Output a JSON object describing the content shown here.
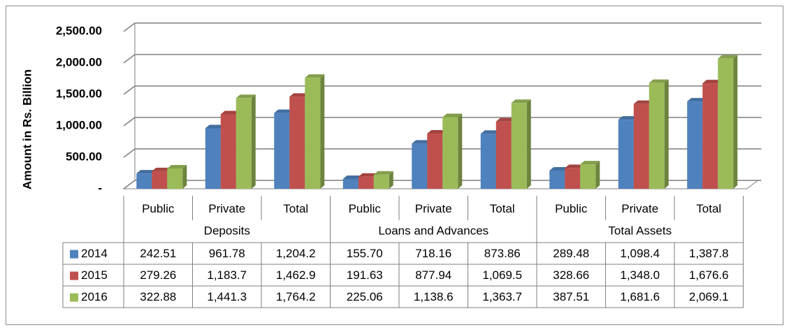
{
  "chart_data": {
    "type": "bar",
    "y_axis_label": "Amount in Rs. Billion",
    "categories": [
      "Public",
      "Private",
      "Total",
      "Public",
      "Private",
      "Total",
      "Public",
      "Private",
      "Total"
    ],
    "groups": [
      "Deposits",
      "Loans and Advances",
      "Total Assets"
    ],
    "series": [
      {
        "name": "2014",
        "color": "#4f81bd",
        "values": [
          242.51,
          961.78,
          1204.2,
          155.7,
          718.16,
          873.86,
          289.48,
          1098.4,
          1387.8
        ],
        "value_labels": [
          "242.51",
          "961.78",
          "1,204.2",
          "155.70",
          "718.16",
          "873.86",
          "289.48",
          "1,098.4",
          "1,387.8"
        ]
      },
      {
        "name": "2015",
        "color": "#c0504d",
        "values": [
          279.26,
          1183.7,
          1462.9,
          191.63,
          877.94,
          1069.5,
          328.66,
          1348,
          1676.6
        ],
        "value_labels": [
          "279.26",
          "1,183.7",
          "1,462.9",
          "191.63",
          "877.94",
          "1,069.5",
          "328.66",
          "1,348.0",
          "1,676.6"
        ]
      },
      {
        "name": "2016",
        "color": "#9bbb59",
        "values": [
          322.88,
          1441.3,
          1764.2,
          225.06,
          1138.6,
          1363.7,
          387.51,
          1681.6,
          2069.1
        ],
        "value_labels": [
          "322.88",
          "1,441.3",
          "1,764.2",
          "225.06",
          "1,138.6",
          "1,363.7",
          "387.51",
          "1,681.6",
          "2,069.1"
        ]
      }
    ],
    "ylim": [
      0,
      2500
    ],
    "yticks": [
      {
        "value": 0,
        "label": "-"
      },
      {
        "value": 500,
        "label": "500.00"
      },
      {
        "value": 1000,
        "label": "1,000.00"
      },
      {
        "value": 1500,
        "label": "1,500.00"
      },
      {
        "value": 2000,
        "label": "2,000.00"
      },
      {
        "value": 2500,
        "label": "2,500.00"
      }
    ],
    "grid": true
  }
}
